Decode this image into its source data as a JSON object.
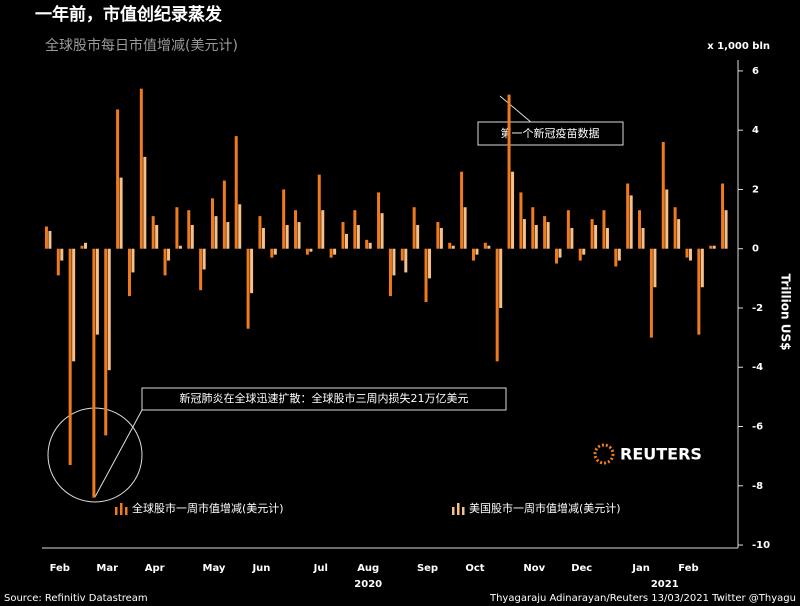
{
  "chart_data": {
    "type": "bar",
    "title": "一年前，市值创纪录蒸发",
    "subtitle": "全球股市每日市值增减(美元计)",
    "unit_label": "x 1,000 bln",
    "y_axis_label": "Trillion US$",
    "categories": [
      null,
      "Feb",
      null,
      null,
      null,
      "Mar",
      null,
      null,
      null,
      "Apr",
      null,
      null,
      null,
      null,
      "May",
      null,
      null,
      null,
      "Jun",
      null,
      null,
      null,
      null,
      "Jul",
      null,
      null,
      null,
      "Aug",
      null,
      null,
      null,
      null,
      "Sep",
      null,
      null,
      null,
      "Oct",
      null,
      null,
      null,
      null,
      "Nov",
      null,
      null,
      null,
      "Dec",
      null,
      null,
      null,
      null,
      "Jan",
      null,
      null,
      null,
      "Feb",
      null,
      null,
      null
    ],
    "years": [
      {
        "index": 27,
        "label": "2020"
      },
      {
        "index": 52,
        "label": "2021"
      }
    ],
    "series": [
      {
        "name": "全球股市一周市值增减(美元计)",
        "color": "#f07b1d",
        "values": [
          0.75,
          -0.9,
          -7.3,
          0.1,
          -8.4,
          -6.3,
          4.7,
          -1.6,
          5.4,
          1.1,
          -0.9,
          1.4,
          1.3,
          -1.4,
          1.7,
          2.3,
          3.8,
          -2.7,
          1.1,
          -0.3,
          2.0,
          1.3,
          -0.2,
          2.5,
          -0.3,
          0.9,
          1.3,
          0.3,
          1.9,
          -1.6,
          -0.4,
          1.4,
          -1.8,
          0.9,
          0.2,
          2.6,
          -0.4,
          0.2,
          -3.8,
          5.2,
          1.9,
          1.4,
          1.1,
          -0.5,
          1.3,
          -0.4,
          1.0,
          1.3,
          -0.6,
          2.2,
          1.3,
          -3.0,
          3.6,
          1.4,
          -0.3,
          -2.9,
          0.1,
          2.2
        ]
      },
      {
        "name": "美国股市一周市值增减(美元计)",
        "color": "#f6c08a",
        "values": [
          0.6,
          -0.4,
          -3.8,
          0.2,
          -2.9,
          -4.1,
          2.4,
          -0.8,
          3.1,
          0.8,
          -0.4,
          0.1,
          0.8,
          -0.7,
          1.1,
          0.9,
          1.5,
          -1.5,
          0.7,
          -0.2,
          0.8,
          0.9,
          -0.1,
          1.3,
          -0.2,
          0.5,
          0.8,
          0.2,
          1.2,
          -0.9,
          -0.8,
          0.8,
          -1.0,
          0.7,
          0.1,
          1.4,
          -0.2,
          0.1,
          -2.0,
          2.6,
          1.0,
          0.8,
          0.9,
          -0.3,
          0.7,
          -0.2,
          0.8,
          0.7,
          -0.4,
          1.8,
          0.7,
          -1.3,
          2.0,
          1.0,
          -0.4,
          -1.3,
          0.1,
          1.3
        ]
      }
    ],
    "ylim": [
      -10.1,
      6.2
    ],
    "yticks": [
      6,
      4,
      2,
      0,
      -2,
      -4,
      -6,
      -8,
      -10
    ],
    "annotations": [
      "第一个新冠疫苗数据",
      "新冠肺炎在全球迅速扩散：全球股市三周内损失21万亿美元"
    ],
    "source": "Source: Refinitiv Datastream",
    "credit": "Thyagaraju Adinarayan/Reuters 13/03/2021 Twitter @Thyagu",
    "brand": "REUTERS"
  }
}
